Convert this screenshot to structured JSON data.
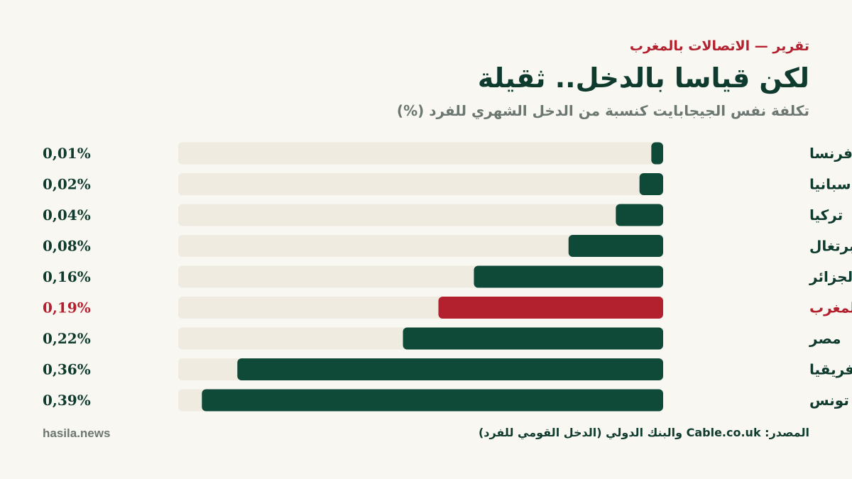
{
  "header": {
    "kicker": "تقرير — الاتصالات بالمغرب",
    "title": "لكن قياسا بالدخل.. ثقيلة",
    "subtitle": "تكلفة نفس الجيجابايت كنسبة من الدخل الشهري للفرد (%)"
  },
  "footer": {
    "source": "المصدر: Cable.co.uk والبنك الدولي (الدخل القومي للفرد)",
    "brand": "hasila.news"
  },
  "colors": {
    "bar": "#0f4a38",
    "highlight": "#b3202e",
    "track": "#f0ebe0",
    "label": "#0f3b2e",
    "background": "#f9f7f2"
  },
  "chart_data": {
    "type": "bar",
    "orientation": "horizontal",
    "direction": "right-to-left",
    "categories": [
      "فرنسا",
      "إسبانيا",
      "تركيا",
      "البرتغال",
      "الجزائر",
      "المغرب",
      "مصر",
      "جنوب إفريقيا",
      "تونس"
    ],
    "values": [
      0.01,
      0.02,
      0.04,
      0.08,
      0.16,
      0.19,
      0.22,
      0.36,
      0.39
    ],
    "value_labels": [
      "0,01%",
      "0,02%",
      "0,04%",
      "0,08%",
      "0,16%",
      "0,19%",
      "0,22%",
      "0,36%",
      "0,39%"
    ],
    "highlight_category": "المغرب",
    "xlim": [
      0,
      0.41
    ],
    "grid": false,
    "legend": "none"
  }
}
